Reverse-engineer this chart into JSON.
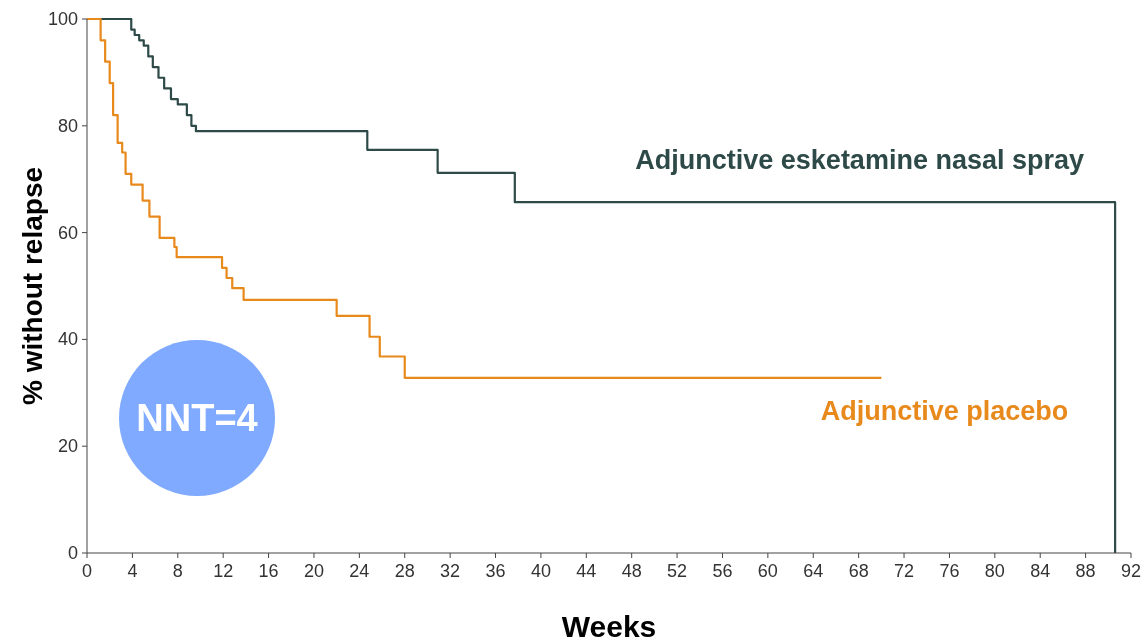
{
  "chart_data": {
    "type": "step",
    "xlabel": "Weeks",
    "ylabel": "% without relapse",
    "xlim": [
      0,
      92
    ],
    "ylim": [
      0,
      100
    ],
    "xticks": [
      0,
      4,
      8,
      12,
      16,
      20,
      24,
      28,
      32,
      36,
      40,
      44,
      48,
      52,
      56,
      60,
      64,
      68,
      72,
      76,
      80,
      84,
      88,
      92
    ],
    "yticks": [
      0,
      20,
      40,
      60,
      80,
      100
    ],
    "grid": false,
    "annotations": [
      "NNT=4"
    ],
    "series": [
      {
        "name": "Adjunctive esketamine nasal spray",
        "color": "#2e4a48",
        "x": [
          0,
          3.9,
          4.2,
          4.6,
          5.0,
          5.4,
          5.8,
          6.3,
          6.8,
          7.4,
          8.0,
          8.8,
          9.2,
          9.6,
          24.7,
          30.9,
          37.7,
          90.6
        ],
        "values": [
          100,
          98,
          97,
          96,
          95,
          93,
          91,
          89,
          87,
          85,
          84,
          82,
          80,
          79,
          75.5,
          71.2,
          65.7,
          0
        ]
      },
      {
        "name": "Adjunctive placebo",
        "color": "#e8891c",
        "x": [
          0,
          1.2,
          1.6,
          2.0,
          2.3,
          2.7,
          3.1,
          3.4,
          3.9,
          4.9,
          5.5,
          6.4,
          7.7,
          7.9,
          11.9,
          12.3,
          12.8,
          13.8,
          22,
          24.9,
          25.8,
          28,
          70
        ],
        "values": [
          100,
          96,
          92,
          88,
          82,
          76.8,
          75,
          71,
          69,
          66,
          63,
          59,
          57.3,
          55.4,
          53.4,
          51.5,
          49.6,
          47.4,
          44.4,
          40.5,
          36.8,
          32.8,
          32.8
        ]
      }
    ]
  }
}
